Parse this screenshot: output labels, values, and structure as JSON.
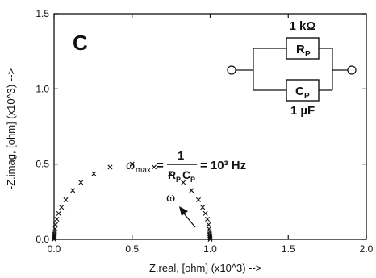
{
  "chart_data": {
    "type": "scatter",
    "panel_label": "C",
    "xlabel": "Z.real,  [ohm]  (x10^3)   -->",
    "ylabel": "-Z.imag,  [ohm]  (x10^3)   -->",
    "xlim": [
      0,
      2.0
    ],
    "ylim": [
      0,
      1.5
    ],
    "x_ticks": [
      "0.0",
      "0.5",
      "1.0",
      "1.5",
      "2.0"
    ],
    "y_ticks": [
      "0.0",
      "0.5",
      "1.0",
      "1.5"
    ],
    "marker": "x",
    "grid": false,
    "points": [
      {
        "x": 1.0,
        "y": 0.0
      },
      {
        "x": 1.0,
        "y": 0.008
      },
      {
        "x": 0.999,
        "y": 0.016
      },
      {
        "x": 0.998,
        "y": 0.025
      },
      {
        "x": 0.997,
        "y": 0.036
      },
      {
        "x": 0.996,
        "y": 0.05
      },
      {
        "x": 0.993,
        "y": 0.07
      },
      {
        "x": 0.99,
        "y": 0.098
      },
      {
        "x": 0.982,
        "y": 0.134
      },
      {
        "x": 0.97,
        "y": 0.172
      },
      {
        "x": 0.952,
        "y": 0.213
      },
      {
        "x": 0.925,
        "y": 0.263
      },
      {
        "x": 0.88,
        "y": 0.325
      },
      {
        "x": 0.828,
        "y": 0.378
      },
      {
        "x": 0.745,
        "y": 0.436
      },
      {
        "x": 0.641,
        "y": 0.48
      },
      {
        "x": 0.5,
        "y": 0.5
      },
      {
        "x": 0.359,
        "y": 0.48
      },
      {
        "x": 0.255,
        "y": 0.436
      },
      {
        "x": 0.172,
        "y": 0.378
      },
      {
        "x": 0.12,
        "y": 0.325
      },
      {
        "x": 0.075,
        "y": 0.263
      },
      {
        "x": 0.048,
        "y": 0.213
      },
      {
        "x": 0.03,
        "y": 0.172
      },
      {
        "x": 0.018,
        "y": 0.134
      },
      {
        "x": 0.01,
        "y": 0.098
      },
      {
        "x": 0.007,
        "y": 0.07
      },
      {
        "x": 0.004,
        "y": 0.05
      },
      {
        "x": 0.003,
        "y": 0.036
      },
      {
        "x": 0.002,
        "y": 0.025
      },
      {
        "x": 0.001,
        "y": 0.016
      },
      {
        "x": 0.0,
        "y": 0.008
      },
      {
        "x": 0.0,
        "y": 0.0
      }
    ],
    "annotations": {
      "omega_arrow_label": "ω",
      "omega_max": "ω",
      "omega_max_sub": "max",
      "equals": "=",
      "numerator": "1",
      "denom_r": "R",
      "denom_r_sub": "P",
      "denom_c": "C",
      "denom_c_sub": "P",
      "result": "= 10³ Hz"
    },
    "circuit": {
      "resistor_value": "1 kΩ",
      "resistor_label": "R",
      "resistor_sub": "P",
      "capacitor_label": "C",
      "capacitor_sub": "P",
      "capacitor_value": "1 µF"
    }
  }
}
